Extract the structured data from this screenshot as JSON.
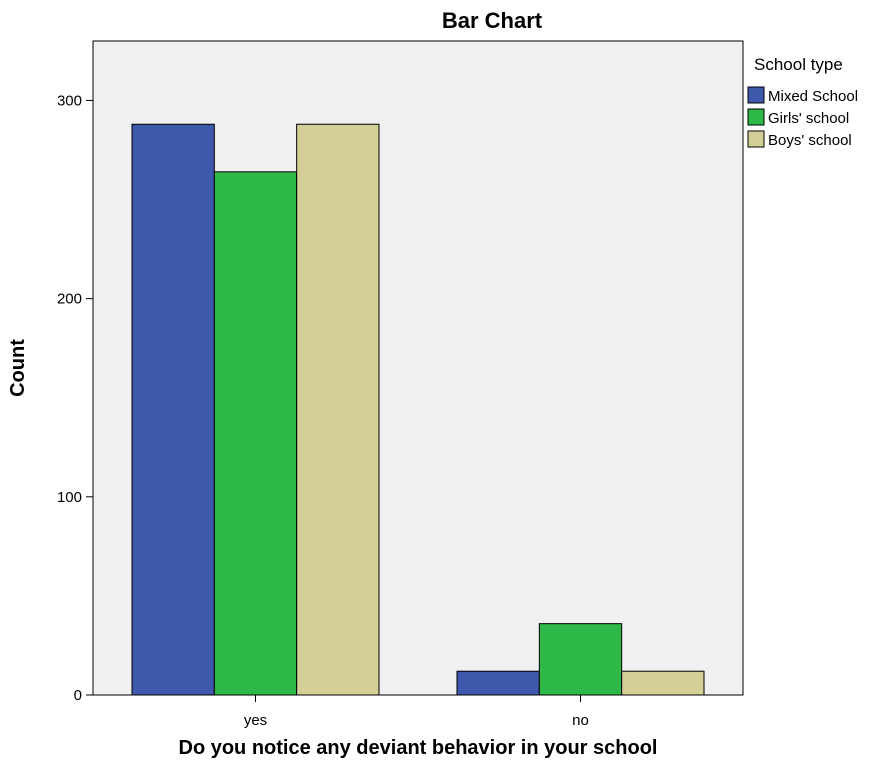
{
  "chart_data": {
    "type": "bar",
    "title": "Bar Chart",
    "xlabel": "Do you notice any deviant behavior in your school",
    "ylabel": "Count",
    "categories": [
      "yes",
      "no"
    ],
    "ylim": [
      0,
      330
    ],
    "yticks": [
      0,
      100,
      200,
      300
    ],
    "grid": false,
    "legend": {
      "title": "School type",
      "placement": "right"
    },
    "plot_background": "#f0f0f0",
    "series": [
      {
        "name": "Mixed School",
        "values": [
          288,
          12
        ],
        "color": "#3e58ac"
      },
      {
        "name": "Girls' school",
        "values": [
          264,
          36
        ],
        "color": "#2eb848"
      },
      {
        "name": "Boys' school",
        "values": [
          288,
          12
        ],
        "color": "#d4cf96"
      }
    ]
  }
}
